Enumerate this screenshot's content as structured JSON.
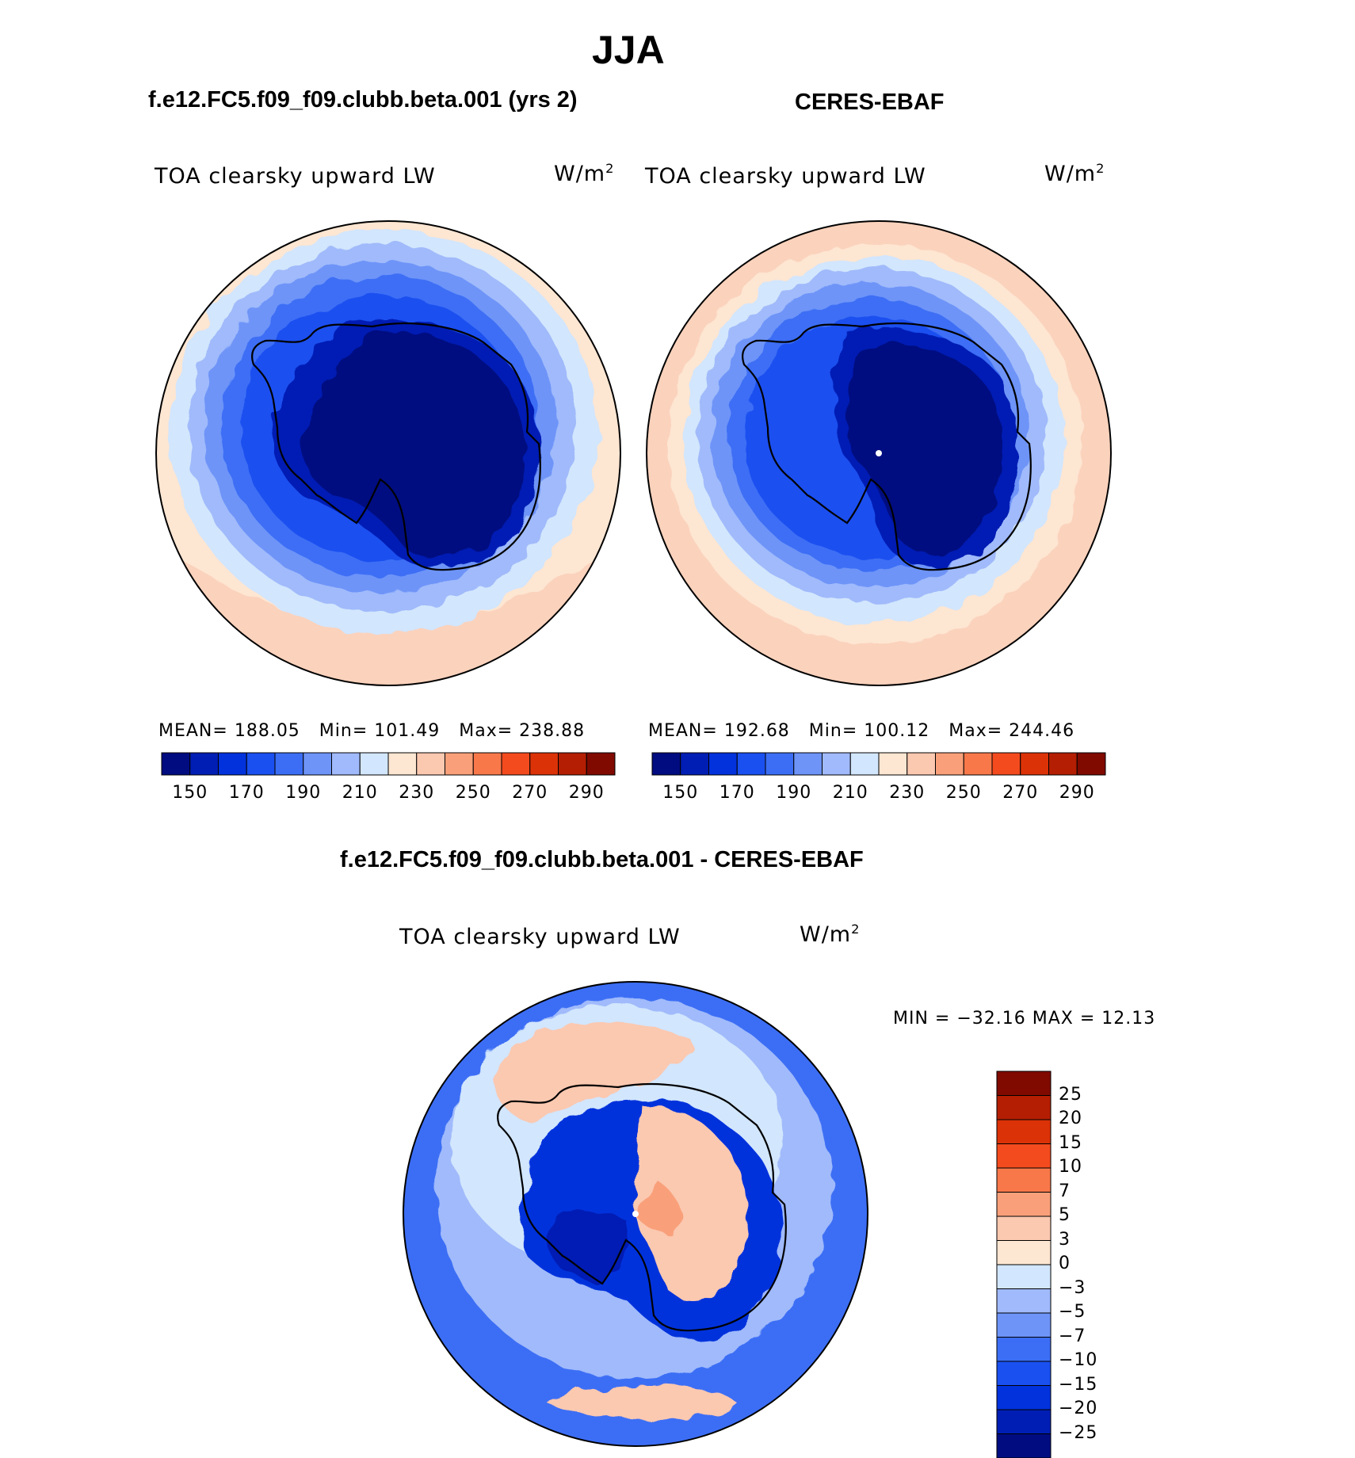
{
  "figure": {
    "season_title": "JJA",
    "left_panel": {
      "case_title": "f.e12.FC5.f09_f09.clubb.beta.001 (yrs 2)",
      "variable": "TOA clearsky upward LW",
      "units_base": "W/m",
      "units_exp": "2",
      "stats": {
        "mean_label": "MEAN=",
        "mean": "188.05",
        "min_label": "Min=",
        "min": "101.49",
        "max_label": "Max=",
        "max": "238.88"
      }
    },
    "right_panel": {
      "case_title": "CERES-EBAF",
      "variable": "TOA clearsky upward LW",
      "units_base": "W/m",
      "units_exp": "2",
      "stats": {
        "mean_label": "MEAN=",
        "mean": "192.68",
        "min_label": "Min=",
        "min": "100.12",
        "max_label": "Max=",
        "max": "244.46"
      }
    },
    "diff_panel": {
      "case_title": "f.e12.FC5.f09_f09.clubb.beta.001 - CERES-EBAF",
      "variable": "TOA clearsky upward LW",
      "units_base": "W/m",
      "units_exp": "2",
      "minmax_text": "MIN = −32.16 MAX =  12.13"
    },
    "abs_colorbar": {
      "colors": [
        "#000c80",
        "#001eb4",
        "#0232dc",
        "#1a50f0",
        "#3c6ef5",
        "#6e94f8",
        "#a0bafb",
        "#d2e6fd",
        "#fde6d2",
        "#fbc8b0",
        "#f9a07a",
        "#f8784a",
        "#f44b1e",
        "#dc3208",
        "#b41e02",
        "#800a00"
      ],
      "tick_labels": [
        "150",
        "170",
        "190",
        "210",
        "230",
        "250",
        "270",
        "290"
      ]
    },
    "diff_colorbar": {
      "colors": [
        "#000c80",
        "#001eb4",
        "#0232dc",
        "#1a50f0",
        "#3c6ef5",
        "#6e94f8",
        "#a0bafb",
        "#d2e6fd",
        "#fde6d2",
        "#fbc8b0",
        "#f9a07a",
        "#f8784a",
        "#f44b1e",
        "#dc3208",
        "#b41e02",
        "#800a00"
      ],
      "tick_labels": [
        "25",
        "20",
        "15",
        "10",
        "7",
        "5",
        "3",
        "0",
        "−3",
        "−5",
        "−7",
        "−10",
        "−15",
        "−20",
        "−25"
      ]
    },
    "map_colors": {
      "ocean_outer": "#fde6d2",
      "ocean_outer2": "#fbd2bc",
      "ring_light": "#d2e6fd",
      "ring_mid": "#a0bafb",
      "ring_blue": "#6e94f8",
      "ring_blue2": "#3c6ef5",
      "ring_deep": "#1a50f0",
      "land_deep": "#000c80",
      "land_mid": "#001eb4",
      "diff_bg": "#3c6ef5",
      "diff_light": "#a0bafb",
      "diff_white": "#d2e6fd",
      "diff_warm": "#fbc8b0",
      "diff_red": "#f9a07a",
      "diff_deep": "#0232dc",
      "diff_darkest": "#001eb4",
      "coast": "#000000"
    }
  }
}
